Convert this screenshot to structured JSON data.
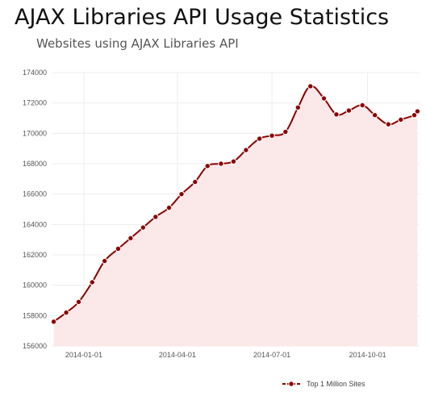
{
  "chart_data": {
    "type": "area",
    "title": "AJAX Libraries API Usage Statistics",
    "subtitle": "Websites using AJAX Libraries API",
    "xlabel": "",
    "ylabel": "",
    "x_tick_labels": [
      "2014-01-01",
      "2014-04-01",
      "2014-07-01",
      "2014-10-01"
    ],
    "x_ticks": [
      "2014-01-01",
      "2014-04-01",
      "2014-07-01",
      "2014-10-01"
    ],
    "xlim": [
      "2013-12-01",
      "2014-11-20"
    ],
    "ylim": [
      156000,
      174000
    ],
    "y_ticks": [
      156000,
      158000,
      160000,
      162000,
      164000,
      166000,
      168000,
      170000,
      172000,
      174000
    ],
    "grid": true,
    "legend_position": "bottom-right",
    "line_color": "#8b0000",
    "fill_color": "#fbe9e9",
    "series": [
      {
        "name": "Top 1 Million Sites",
        "x": [
          "2013-12-03",
          "2013-12-15",
          "2013-12-27",
          "2014-01-09",
          "2014-01-21",
          "2014-02-03",
          "2014-02-15",
          "2014-02-27",
          "2014-03-11",
          "2014-03-24",
          "2014-04-05",
          "2014-04-18",
          "2014-04-30",
          "2014-05-13",
          "2014-05-25",
          "2014-06-06",
          "2014-06-19",
          "2014-07-01",
          "2014-07-14",
          "2014-07-26",
          "2014-08-07",
          "2014-08-20",
          "2014-09-01",
          "2014-09-13",
          "2014-09-26",
          "2014-10-08",
          "2014-10-21",
          "2014-11-02",
          "2014-11-15",
          "2014-11-18"
        ],
        "values": [
          157600,
          158200,
          158900,
          160200,
          161600,
          162400,
          163100,
          163800,
          164500,
          165100,
          166000,
          166800,
          167850,
          168000,
          168150,
          168900,
          169650,
          169850,
          170100,
          171700,
          173100,
          172300,
          171250,
          171500,
          171850,
          171200,
          170600,
          170900,
          171200,
          171450
        ]
      }
    ]
  }
}
